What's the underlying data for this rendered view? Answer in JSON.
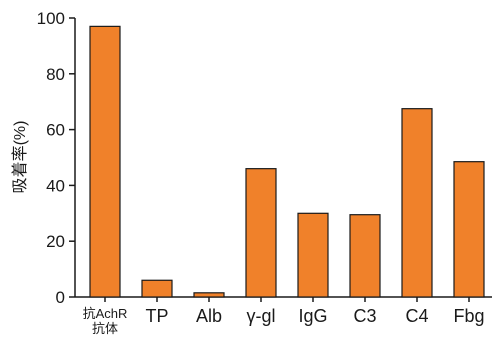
{
  "chart_data": {
    "type": "bar",
    "categories": [
      "抗AchR\n抗体",
      "TP",
      "Alb",
      "γ-gl",
      "IgG",
      "C3",
      "C4",
      "Fbg"
    ],
    "values": [
      97,
      6,
      1.5,
      46,
      30,
      29.5,
      67.5,
      48.5
    ],
    "title": "",
    "xlabel": "",
    "ylabel": "吸着率(%)",
    "ylim": [
      0,
      100
    ],
    "yticks": [
      0,
      20,
      40,
      60,
      80,
      100
    ],
    "grid": false,
    "legend": "none",
    "colors": {
      "bar_fill": "#f0812a",
      "bar_stroke": "#1a1a1a",
      "axis": "#1a1a1a"
    }
  }
}
